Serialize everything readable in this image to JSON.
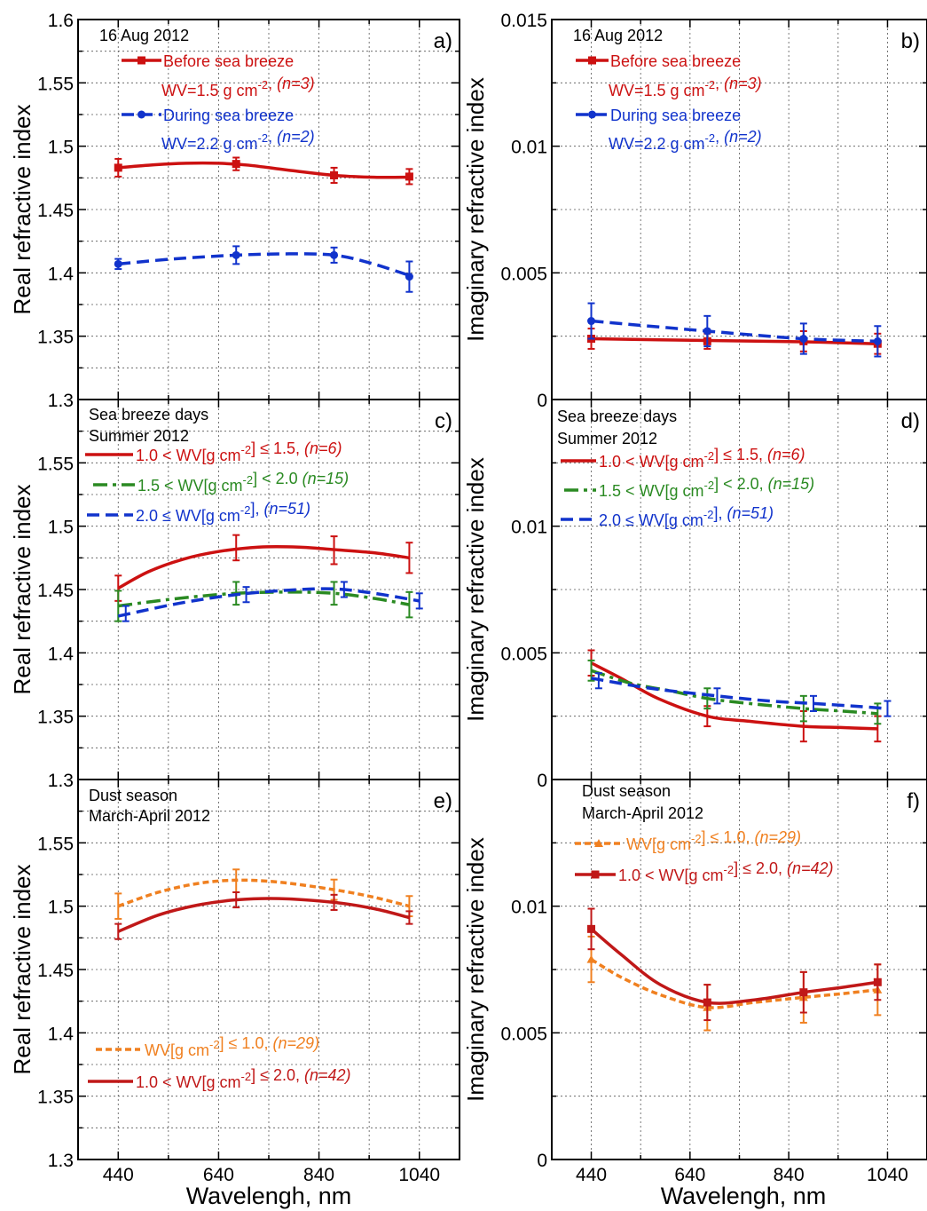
{
  "figure": {
    "xlabel": "Wavelengh, nm"
  },
  "chart_data": [
    {
      "id": "a",
      "type": "line",
      "panel_label": "a)",
      "notes": [
        "16 Aug 2012"
      ],
      "ylabel": "Real refractive index",
      "xlim": [
        360,
        1120
      ],
      "ylim": [
        1.3,
        1.6
      ],
      "xticks": [
        440,
        640,
        840,
        1040
      ],
      "xtick_labels": [
        "440",
        "640",
        "840",
        "1040"
      ],
      "yticks": [
        1.3,
        1.35,
        1.4,
        1.45,
        1.5,
        1.55,
        1.6
      ],
      "ytick_labels": [
        "1.3",
        "1.35",
        "1.4",
        "1.45",
        "1.5",
        "1.55",
        "1.6"
      ],
      "series": [
        {
          "name": "Before sea breeze",
          "extra": "WV=1.5 g cm⁻², ",
          "extra_italic": "(n=3)",
          "color": "#cc1111",
          "dash": "solid",
          "marker": "square",
          "x": [
            440,
            675,
            870,
            1020
          ],
          "y": [
            1.483,
            1.486,
            1.477,
            1.476
          ],
          "err": [
            0.007,
            0.005,
            0.006,
            0.006
          ],
          "curve": [
            [
              440,
              1.483
            ],
            [
              500,
              1.485
            ],
            [
              575,
              1.4865
            ],
            [
              640,
              1.4865
            ],
            [
              700,
              1.485
            ],
            [
              780,
              1.481
            ],
            [
              870,
              1.477
            ],
            [
              950,
              1.4755
            ],
            [
              1020,
              1.4755
            ]
          ]
        },
        {
          "name": "During sea breeze",
          "extra": "WV=2.2 g cm⁻², ",
          "extra_italic": "(n=2)",
          "color": "#1133cc",
          "dash": "dash",
          "marker": "circle",
          "x": [
            440,
            675,
            870,
            1020
          ],
          "y": [
            1.407,
            1.414,
            1.414,
            1.397
          ],
          "err": [
            0.004,
            0.007,
            0.006,
            0.012
          ],
          "curve": [
            [
              440,
              1.407
            ],
            [
              550,
              1.411
            ],
            [
              675,
              1.414
            ],
            [
              780,
              1.415
            ],
            [
              870,
              1.414
            ],
            [
              940,
              1.408
            ],
            [
              1020,
              1.398
            ]
          ]
        }
      ]
    },
    {
      "id": "b",
      "type": "line",
      "panel_label": "b)",
      "notes": [
        "16 Aug 2012"
      ],
      "ylabel": "Imaginary refractive index",
      "xlim": [
        360,
        1120
      ],
      "ylim": [
        0,
        0.015
      ],
      "xticks": [
        440,
        640,
        840,
        1040
      ],
      "xtick_labels": [
        "440",
        "640",
        "840",
        "1040"
      ],
      "yticks": [
        0,
        0.005,
        0.01,
        0.015
      ],
      "ytick_labels": [
        "0",
        "0.005",
        "0.01",
        "0.015"
      ],
      "series": [
        {
          "name": "Before sea breeze",
          "extra": "WV=1.5 g cm⁻², ",
          "extra_italic": "(n=3)",
          "color": "#cc1111",
          "dash": "solid",
          "marker": "square",
          "x": [
            440,
            675,
            870,
            1020
          ],
          "y": [
            0.0024,
            0.0023,
            0.0023,
            0.0022
          ],
          "err": [
            0.0004,
            0.0003,
            0.0004,
            0.0004
          ],
          "curve": [
            [
              440,
              0.0024
            ],
            [
              675,
              0.00233
            ],
            [
              870,
              0.00228
            ],
            [
              1020,
              0.0022
            ]
          ]
        },
        {
          "name": "During sea breeze",
          "extra": "WV=2.2 g cm⁻², ",
          "extra_italic": "(n=2)",
          "color": "#1133cc",
          "dash": "dash",
          "marker": "circle",
          "x": [
            440,
            675,
            870,
            1020
          ],
          "y": [
            0.0031,
            0.0027,
            0.0024,
            0.0023
          ],
          "err": [
            0.0007,
            0.0006,
            0.0006,
            0.0006
          ],
          "curve": [
            [
              440,
              0.0031
            ],
            [
              675,
              0.0027
            ],
            [
              870,
              0.0024
            ],
            [
              1020,
              0.0023
            ]
          ]
        }
      ]
    },
    {
      "id": "c",
      "type": "line",
      "panel_label": "c)",
      "notes": [
        "Sea breeze days",
        "Summer 2012"
      ],
      "ylabel": "Real refractive index",
      "xlim": [
        360,
        1120
      ],
      "ylim": [
        1.3,
        1.6
      ],
      "xticks": [
        440,
        640,
        840,
        1040
      ],
      "xtick_labels": [
        "440",
        "640",
        "840",
        "1040"
      ],
      "yticks": [
        1.3,
        1.35,
        1.4,
        1.45,
        1.5,
        1.55
      ],
      "ytick_labels": [
        "1.3",
        "1.35",
        "1.4",
        "1.45",
        "1.5",
        "1.55"
      ],
      "series": [
        {
          "name": "1.0 < WV[g cm⁻²] ≤ 1.5, ",
          "name_italic": "(n=6)",
          "color": "#cc1111",
          "dash": "solid",
          "marker": "none",
          "x": [
            440,
            675,
            870,
            1020
          ],
          "y": [
            1.451,
            1.483,
            1.481,
            1.475
          ],
          "err": [
            0.01,
            0.01,
            0.011,
            0.012
          ],
          "curve": [
            [
              440,
              1.451
            ],
            [
              500,
              1.464
            ],
            [
              570,
              1.474
            ],
            [
              640,
              1.48
            ],
            [
              720,
              1.4835
            ],
            [
              800,
              1.4835
            ],
            [
              870,
              1.4815
            ],
            [
              950,
              1.479
            ],
            [
              1020,
              1.475
            ]
          ]
        },
        {
          "name": "1.5 < WV[g cm⁻²] < 2.0 ",
          "name_italic": "(n=15)",
          "color": "#2a8a22",
          "dash": "dashdot",
          "marker": "none",
          "x": [
            440,
            675,
            870,
            1020
          ],
          "y": [
            1.437,
            1.447,
            1.447,
            1.438
          ],
          "err": [
            0.012,
            0.009,
            0.009,
            0.01
          ],
          "curve": [
            [
              440,
              1.437
            ],
            [
              560,
              1.443
            ],
            [
              675,
              1.447
            ],
            [
              780,
              1.448
            ],
            [
              870,
              1.447
            ],
            [
              950,
              1.443
            ],
            [
              1020,
              1.438
            ]
          ]
        },
        {
          "name": "2.0 ≤ WV[g cm⁻²], ",
          "name_italic": "(n=51)",
          "color": "#1133cc",
          "dash": "dash",
          "marker": "none",
          "x": [
            455,
            695,
            890,
            1040
          ],
          "y": [
            1.431,
            1.446,
            1.45,
            1.441
          ],
          "err": [
            0.006,
            0.006,
            0.006,
            0.006
          ],
          "curve": [
            [
              440,
              1.429
            ],
            [
              560,
              1.439
            ],
            [
              675,
              1.446
            ],
            [
              780,
              1.4495
            ],
            [
              870,
              1.4505
            ],
            [
              950,
              1.447
            ],
            [
              1040,
              1.441
            ]
          ]
        }
      ]
    },
    {
      "id": "d",
      "type": "line",
      "panel_label": "d)",
      "notes": [
        "Sea breeze days",
        "Summer 2012"
      ],
      "ylabel": "Imaginary refractive index",
      "xlim": [
        360,
        1120
      ],
      "ylim": [
        0,
        0.015
      ],
      "xticks": [
        440,
        640,
        840,
        1040
      ],
      "xtick_labels": [
        "440",
        "640",
        "840",
        "1040"
      ],
      "yticks": [
        0,
        0.005,
        0.01
      ],
      "ytick_labels": [
        "0",
        "0.005",
        "0.01"
      ],
      "series": [
        {
          "name": "1.0 < WV[g cm⁻²] ≤ 1.5, ",
          "name_italic": "(n=6)",
          "color": "#cc1111",
          "dash": "solid",
          "marker": "none",
          "x": [
            440,
            675,
            870,
            1020
          ],
          "y": [
            0.0046,
            0.0025,
            0.0021,
            0.002
          ],
          "err": [
            0.0005,
            0.0004,
            0.0006,
            0.0005
          ],
          "curve": [
            [
              440,
              0.0046
            ],
            [
              500,
              0.004
            ],
            [
              575,
              0.0032
            ],
            [
              675,
              0.0025
            ],
            [
              760,
              0.0023
            ],
            [
              870,
              0.0021
            ],
            [
              950,
              0.00205
            ],
            [
              1020,
              0.002
            ]
          ]
        },
        {
          "name": "1.5 < WV[g cm⁻²] < 2.0, ",
          "name_italic": "(n=15)",
          "color": "#2a8a22",
          "dash": "dashdot",
          "marker": "none",
          "x": [
            440,
            675,
            870,
            1020
          ],
          "y": [
            0.0043,
            0.0032,
            0.0028,
            0.0026
          ],
          "err": [
            0.0004,
            0.0004,
            0.0005,
            0.0004
          ],
          "curve": [
            [
              440,
              0.0043
            ],
            [
              520,
              0.0038
            ],
            [
              600,
              0.0035
            ],
            [
              675,
              0.0032
            ],
            [
              760,
              0.003
            ],
            [
              870,
              0.0028
            ],
            [
              950,
              0.0027
            ],
            [
              1020,
              0.0026
            ]
          ]
        },
        {
          "name": "2.0 ≤ WV[g cm⁻²], ",
          "name_italic": "(n=51)",
          "color": "#1133cc",
          "dash": "dash",
          "marker": "none",
          "x": [
            455,
            695,
            890,
            1040
          ],
          "y": [
            0.0039,
            0.0033,
            0.003,
            0.0028
          ],
          "err": [
            0.0003,
            0.0003,
            0.0003,
            0.0003
          ],
          "curve": [
            [
              440,
              0.004
            ],
            [
              560,
              0.0036
            ],
            [
              695,
              0.0033
            ],
            [
              800,
              0.0031
            ],
            [
              890,
              0.003
            ],
            [
              970,
              0.0029
            ],
            [
              1040,
              0.0028
            ]
          ]
        }
      ]
    },
    {
      "id": "e",
      "type": "line",
      "panel_label": "e)",
      "notes": [
        "Dust season",
        "March-April 2012"
      ],
      "ylabel": "Real refractive index",
      "xlim": [
        360,
        1120
      ],
      "ylim": [
        1.3,
        1.6
      ],
      "xticks": [
        440,
        640,
        840,
        1040
      ],
      "xtick_labels": [
        "440",
        "640",
        "840",
        "1040"
      ],
      "yticks": [
        1.3,
        1.35,
        1.4,
        1.45,
        1.5,
        1.55
      ],
      "ytick_labels": [
        "1.3",
        "1.35",
        "1.4",
        "1.45",
        "1.5",
        "1.55"
      ],
      "series": [
        {
          "name": "WV[g cm⁻²] ≤ 1.0, ",
          "name_italic": "(n=29)",
          "color": "#f08020",
          "dash": "shortdash",
          "marker": "none",
          "x": [
            440,
            675,
            870,
            1020
          ],
          "y": [
            1.5,
            1.52,
            1.513,
            1.5
          ],
          "err": [
            0.01,
            0.009,
            0.008,
            0.008
          ],
          "curve": [
            [
              440,
              1.5
            ],
            [
              520,
              1.511
            ],
            [
              600,
              1.518
            ],
            [
              675,
              1.5205
            ],
            [
              760,
              1.519
            ],
            [
              870,
              1.513
            ],
            [
              950,
              1.507
            ],
            [
              1020,
              1.5
            ]
          ]
        },
        {
          "name": "1.0 < WV[g cm⁻²] ≤ 2.0, ",
          "name_italic": "(n=42)",
          "color": "#c01818",
          "dash": "solid",
          "marker": "none",
          "x": [
            440,
            675,
            870,
            1020
          ],
          "y": [
            1.48,
            1.505,
            1.503,
            1.491
          ],
          "err": [
            0.006,
            0.006,
            0.006,
            0.005
          ],
          "curve": [
            [
              440,
              1.48
            ],
            [
              520,
              1.493
            ],
            [
              600,
              1.501
            ],
            [
              675,
              1.505
            ],
            [
              760,
              1.506
            ],
            [
              870,
              1.503
            ],
            [
              950,
              1.498
            ],
            [
              1020,
              1.491
            ]
          ]
        }
      ]
    },
    {
      "id": "f",
      "type": "line",
      "panel_label": "f)",
      "notes": [
        "Dust season",
        "March-April 2012"
      ],
      "ylabel": "Imaginary refractive index",
      "xlim": [
        360,
        1120
      ],
      "ylim": [
        0,
        0.015
      ],
      "xticks": [
        440,
        640,
        840,
        1040
      ],
      "xtick_labels": [
        "440",
        "640",
        "840",
        "1040"
      ],
      "yticks": [
        0,
        0.005,
        0.01
      ],
      "ytick_labels": [
        "0",
        "0.005",
        "0.01"
      ],
      "series": [
        {
          "name": "WV[g cm⁻²] ≤ 1.0, ",
          "name_italic": "(n=29)",
          "color": "#f08020",
          "dash": "shortdash",
          "marker": "triangle",
          "x": [
            440,
            675,
            870,
            1020
          ],
          "y": [
            0.0079,
            0.006,
            0.0064,
            0.0067
          ],
          "err": [
            0.0009,
            0.0009,
            0.001,
            0.001
          ],
          "curve": [
            [
              440,
              0.0079
            ],
            [
              500,
              0.0072
            ],
            [
              580,
              0.0065
            ],
            [
              675,
              0.006
            ],
            [
              770,
              0.0062
            ],
            [
              870,
              0.0064
            ],
            [
              950,
              0.00655
            ],
            [
              1020,
              0.0067
            ]
          ]
        },
        {
          "name": "1.0 < WV[g cm⁻²] ≤ 2.0, ",
          "name_italic": "(n=42)",
          "color": "#c01818",
          "dash": "solid",
          "marker": "square",
          "x": [
            440,
            675,
            870,
            1020
          ],
          "y": [
            0.0091,
            0.0062,
            0.0066,
            0.007
          ],
          "err": [
            0.0008,
            0.0007,
            0.0008,
            0.0007
          ],
          "curve": [
            [
              440,
              0.0091
            ],
            [
              500,
              0.0081
            ],
            [
              580,
              0.0069
            ],
            [
              675,
              0.0062
            ],
            [
              770,
              0.0063
            ],
            [
              870,
              0.0066
            ],
            [
              950,
              0.0068
            ],
            [
              1020,
              0.007
            ]
          ]
        }
      ]
    }
  ]
}
